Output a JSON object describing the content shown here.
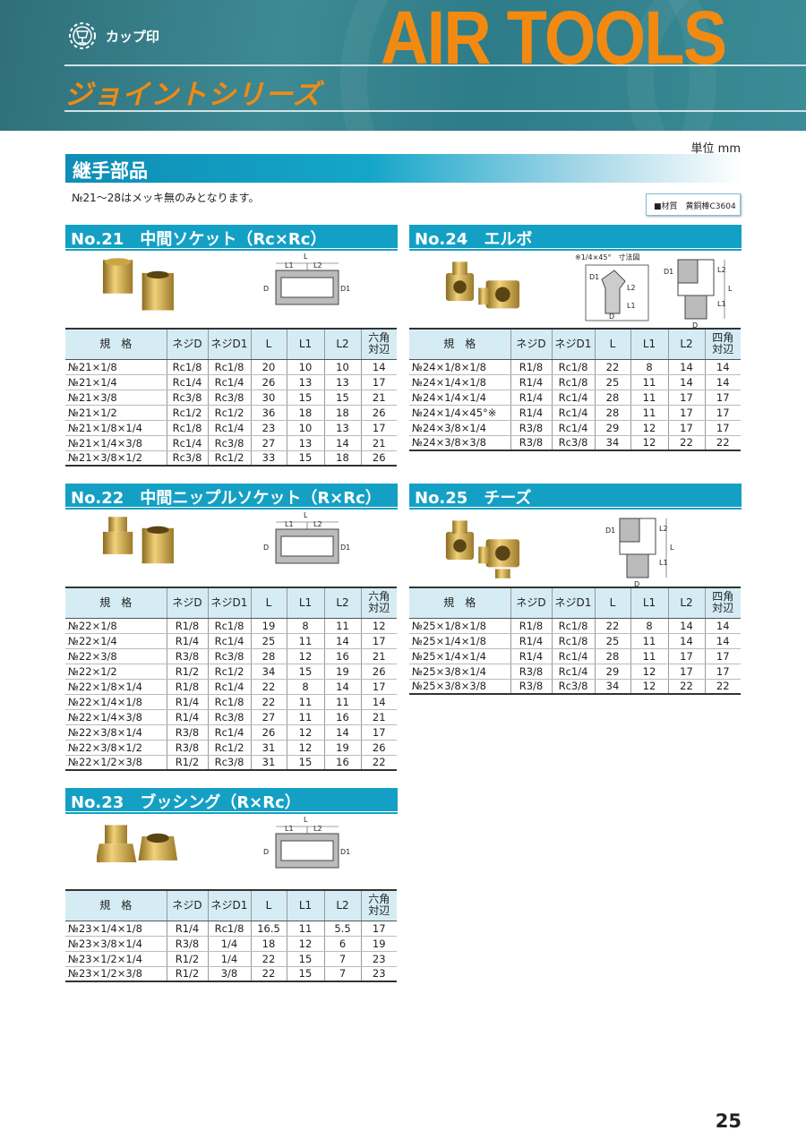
{
  "header": {
    "brand": "カップ印",
    "title": "AIR TOOLS",
    "series": "ジョイントシリーズ",
    "colors": {
      "band": "#2f7a86",
      "accent": "#f28a12"
    }
  },
  "unit": "単位 mm",
  "section_title": "継手部品",
  "note": "№21～28はメッキ無のみとなります。",
  "material": "■材質　黄銅棒C3604",
  "diagram_labels": {
    "L": "L",
    "L1": "L1",
    "L2": "L2",
    "D": "D",
    "D1": "D1",
    "elbow45": "※1/4×45°　寸法図"
  },
  "sections": [
    {
      "id": "21",
      "title": "No.21　中間ソケット（Rc×Rc）",
      "headers": [
        "規　格",
        "ネジD",
        "ネジD1",
        "L",
        "L1",
        "L2",
        "六角\n対辺"
      ],
      "rows": [
        [
          "№21×1/8",
          "Rc1/8",
          "Rc1/8",
          "20",
          "10",
          "10",
          "14"
        ],
        [
          "№21×1/4",
          "Rc1/4",
          "Rc1/4",
          "26",
          "13",
          "13",
          "17"
        ],
        [
          "№21×3/8",
          "Rc3/8",
          "Rc3/8",
          "30",
          "15",
          "15",
          "21"
        ],
        [
          "№21×1/2",
          "Rc1/2",
          "Rc1/2",
          "36",
          "18",
          "18",
          "26"
        ],
        [
          "№21×1/8×1/4",
          "Rc1/8",
          "Rc1/4",
          "23",
          "10",
          "13",
          "17"
        ],
        [
          "№21×1/4×3/8",
          "Rc1/4",
          "Rc3/8",
          "27",
          "13",
          "14",
          "21"
        ],
        [
          "№21×3/8×1/2",
          "Rc3/8",
          "Rc1/2",
          "33",
          "15",
          "18",
          "26"
        ]
      ],
      "sep": 4
    },
    {
      "id": "24",
      "title": "No.24　エルボ",
      "headers": [
        "規　格",
        "ネジD",
        "ネジD1",
        "L",
        "L1",
        "L2",
        "四角\n対辺"
      ],
      "rows": [
        [
          "№24×1/8×1/8",
          "R1/8",
          "Rc1/8",
          "22",
          "8",
          "14",
          "14"
        ],
        [
          "№24×1/4×1/8",
          "R1/4",
          "Rc1/8",
          "25",
          "11",
          "14",
          "14"
        ],
        [
          "№24×1/4×1/4",
          "R1/4",
          "Rc1/4",
          "28",
          "11",
          "17",
          "17"
        ],
        [
          "№24×1/4×45°※",
          "R1/4",
          "Rc1/4",
          "28",
          "11",
          "17",
          "17"
        ],
        [
          "№24×3/8×1/4",
          "R3/8",
          "Rc1/4",
          "29",
          "12",
          "17",
          "17"
        ],
        [
          "№24×3/8×3/8",
          "R3/8",
          "Rc3/8",
          "34",
          "12",
          "22",
          "22"
        ]
      ],
      "sep": -1
    },
    {
      "id": "22",
      "title": "No.22　中間ニップルソケット（R×Rc）",
      "headers": [
        "規　格",
        "ネジD",
        "ネジD1",
        "L",
        "L1",
        "L2",
        "六角\n対辺"
      ],
      "rows": [
        [
          "№22×1/8",
          "R1/8",
          "Rc1/8",
          "19",
          "8",
          "11",
          "12"
        ],
        [
          "№22×1/4",
          "R1/4",
          "Rc1/4",
          "25",
          "11",
          "14",
          "17"
        ],
        [
          "№22×3/8",
          "R3/8",
          "Rc3/8",
          "28",
          "12",
          "16",
          "21"
        ],
        [
          "№22×1/2",
          "R1/2",
          "Rc1/2",
          "34",
          "15",
          "19",
          "26"
        ],
        [
          "№22×1/8×1/4",
          "R1/8",
          "Rc1/4",
          "22",
          "8",
          "14",
          "17"
        ],
        [
          "№22×1/4×1/8",
          "R1/4",
          "Rc1/8",
          "22",
          "11",
          "11",
          "14"
        ],
        [
          "№22×1/4×3/8",
          "R1/4",
          "Rc3/8",
          "27",
          "11",
          "16",
          "21"
        ],
        [
          "№22×3/8×1/4",
          "R3/8",
          "Rc1/4",
          "26",
          "12",
          "14",
          "17"
        ],
        [
          "№22×3/8×1/2",
          "R3/8",
          "Rc1/2",
          "31",
          "12",
          "19",
          "26"
        ],
        [
          "№22×1/2×3/8",
          "R1/2",
          "Rc3/8",
          "31",
          "15",
          "16",
          "22"
        ]
      ],
      "sep": 4
    },
    {
      "id": "25",
      "title": "No.25　チーズ",
      "headers": [
        "規　格",
        "ネジD",
        "ネジD1",
        "L",
        "L1",
        "L2",
        "四角\n対辺"
      ],
      "rows": [
        [
          "№25×1/8×1/8",
          "R1/8",
          "Rc1/8",
          "22",
          "8",
          "14",
          "14"
        ],
        [
          "№25×1/4×1/8",
          "R1/4",
          "Rc1/8",
          "25",
          "11",
          "14",
          "14"
        ],
        [
          "№25×1/4×1/4",
          "R1/4",
          "Rc1/4",
          "28",
          "11",
          "17",
          "17"
        ],
        [
          "№25×3/8×1/4",
          "R3/8",
          "Rc1/4",
          "29",
          "12",
          "17",
          "17"
        ],
        [
          "№25×3/8×3/8",
          "R3/8",
          "Rc3/8",
          "34",
          "12",
          "22",
          "22"
        ]
      ],
      "sep": -1
    },
    {
      "id": "23",
      "title": "No.23　ブッシング（R×Rc）",
      "headers": [
        "規　格",
        "ネジD",
        "ネジD1",
        "L",
        "L1",
        "L2",
        "六角\n対辺"
      ],
      "rows": [
        [
          "№23×1/4×1/8",
          "R1/4",
          "Rc1/8",
          "16.5",
          "11",
          "5.5",
          "17"
        ],
        [
          "№23×3/8×1/4",
          "R3/8",
          "1/4",
          "18",
          "12",
          "6",
          "19"
        ],
        [
          "№23×1/2×1/4",
          "R1/2",
          "1/4",
          "22",
          "15",
          "7",
          "23"
        ],
        [
          "№23×1/2×3/8",
          "R1/2",
          "3/8",
          "22",
          "15",
          "7",
          "23"
        ]
      ],
      "sep": -1
    }
  ],
  "page_number": "25"
}
